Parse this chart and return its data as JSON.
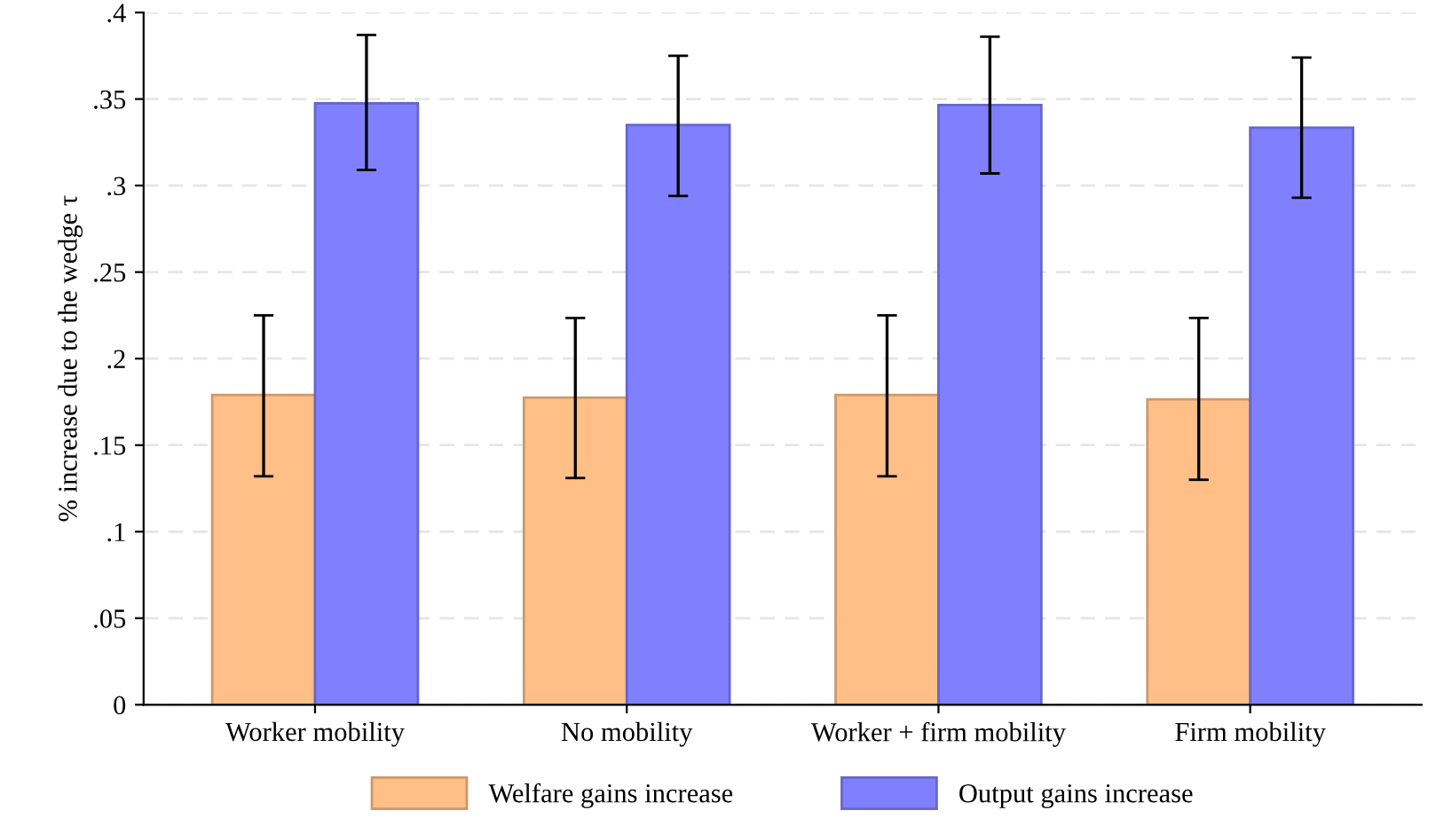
{
  "chart_data": {
    "type": "bar",
    "ylabel": "% increase due to the wedge τ",
    "categories": [
      "Worker mobility",
      "No mobility",
      "Worker + firm mobility",
      "Firm mobility"
    ],
    "series": [
      {
        "name": "Welfare gains increase",
        "color": "#ffbf87",
        "values": [
          0.179,
          0.1775,
          0.179,
          0.1765
        ],
        "errors": [
          [
            0.132,
            0.225
          ],
          [
            0.131,
            0.2235
          ],
          [
            0.132,
            0.225
          ],
          [
            0.13,
            0.2235
          ]
        ]
      },
      {
        "name": "Output gains increase",
        "color": "#8080ff",
        "values": [
          0.3475,
          0.335,
          0.3465,
          0.3335
        ],
        "errors": [
          [
            0.309,
            0.387
          ],
          [
            0.294,
            0.375
          ],
          [
            0.307,
            0.386
          ],
          [
            0.293,
            0.374
          ]
        ]
      }
    ],
    "ylim": [
      0,
      0.4
    ],
    "yticks": [
      {
        "value": 0,
        "label": "0"
      },
      {
        "value": 0.05,
        "label": ".05"
      },
      {
        "value": 0.1,
        "label": ".1"
      },
      {
        "value": 0.15,
        "label": ".15"
      },
      {
        "value": 0.2,
        "label": ".2"
      },
      {
        "value": 0.25,
        "label": ".25"
      },
      {
        "value": 0.3,
        "label": ".3"
      },
      {
        "value": 0.35,
        "label": ".35"
      },
      {
        "value": 0.4,
        "label": ".4"
      }
    ],
    "grid": "y",
    "legend": "bottom"
  }
}
